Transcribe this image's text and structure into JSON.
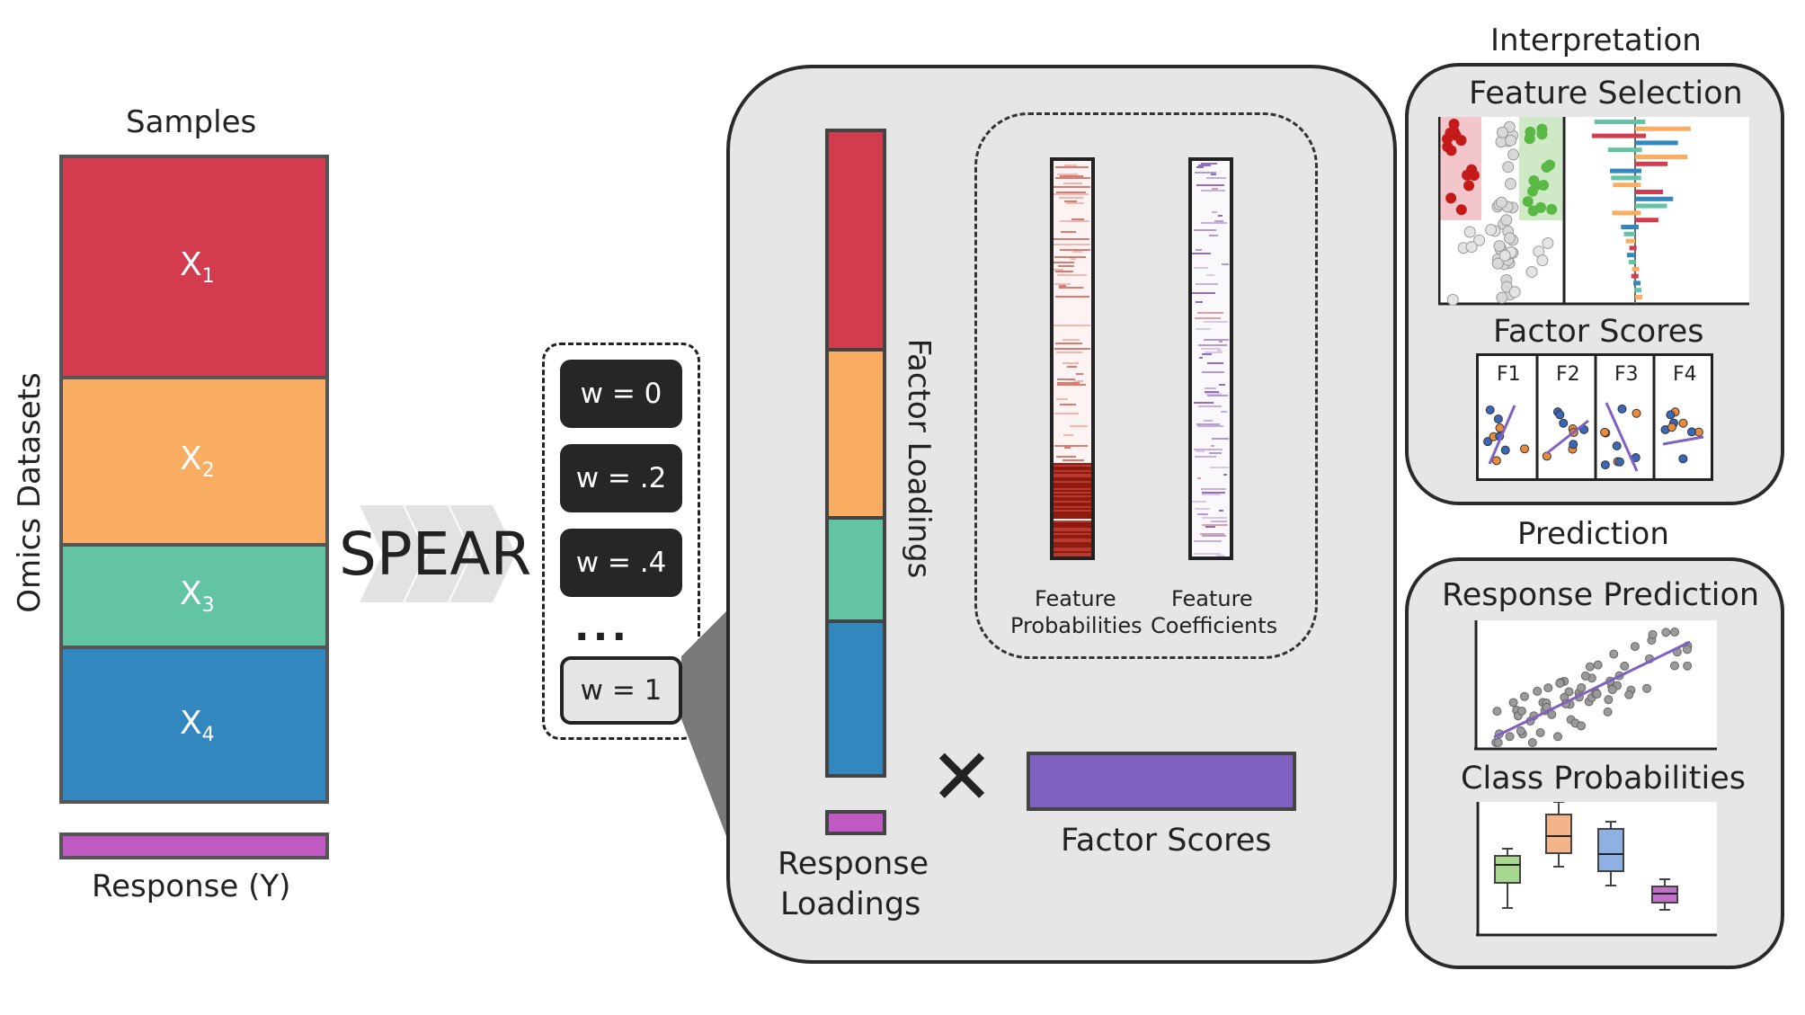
{
  "left": {
    "samples_label": "Samples",
    "omics_label": "Omics Datasets",
    "datasets": [
      {
        "name": "X",
        "sub": "1",
        "color": "#d33b4e"
      },
      {
        "name": "X",
        "sub": "2",
        "color": "#f8ad63"
      },
      {
        "name": "X",
        "sub": "3",
        "color": "#63c3a5"
      },
      {
        "name": "X",
        "sub": "4",
        "color": "#3287be"
      }
    ],
    "response_label": "Response (Y)",
    "response_color": "#c059c2"
  },
  "method_label": "SPEAR",
  "weights": [
    "w = 0",
    "w = .2",
    "w = .4",
    "...",
    "w = 1"
  ],
  "main": {
    "factor_loadings_label": "Factor Loadings",
    "response_loadings_label": [
      "Response",
      "Loadings"
    ],
    "feature_probabilities_label": [
      "Feature",
      "Probabilities"
    ],
    "feature_coefficients_label": [
      "Feature",
      "Coefficients"
    ],
    "times_symbol": "✕",
    "factor_scores_label": "Factor Scores",
    "factor_scores_color": "#8060c0"
  },
  "interpretation": {
    "title": "Interpretation",
    "feature_selection_label": "Feature Selection",
    "factor_scores_label": "Factor Scores",
    "factor_tabs": [
      "F1",
      "F2",
      "F3",
      "F4"
    ]
  },
  "prediction": {
    "title": "Prediction",
    "response_prediction_label": "Response Prediction",
    "class_probabilities_label": "Class Probabilities"
  }
}
